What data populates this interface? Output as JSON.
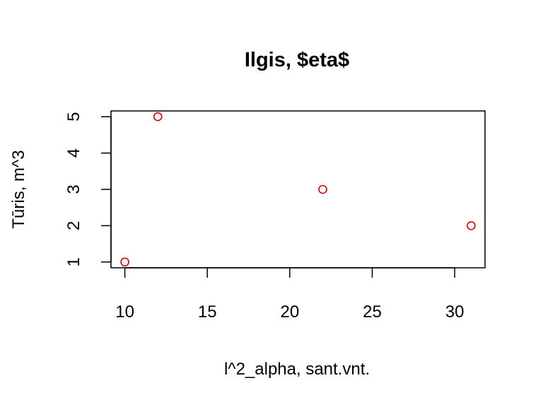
{
  "chart_data": {
    "type": "scatter",
    "title": "Ilgis, $\u0002eta$",
    "xlabel": "l^2_alpha, sant.vnt.",
    "ylabel": "Tūris, m^3",
    "x": [
      10,
      12,
      22,
      31
    ],
    "y": [
      1,
      5,
      3,
      2
    ],
    "xlim": [
      9.16,
      31.84
    ],
    "ylim": [
      0.84,
      5.16
    ],
    "xticks": [
      10,
      15,
      20,
      25,
      30
    ],
    "yticks": [
      1,
      2,
      3,
      4,
      5
    ],
    "point_color": "#e00000",
    "marker": "open-circle",
    "grid": false,
    "legend": "none"
  }
}
